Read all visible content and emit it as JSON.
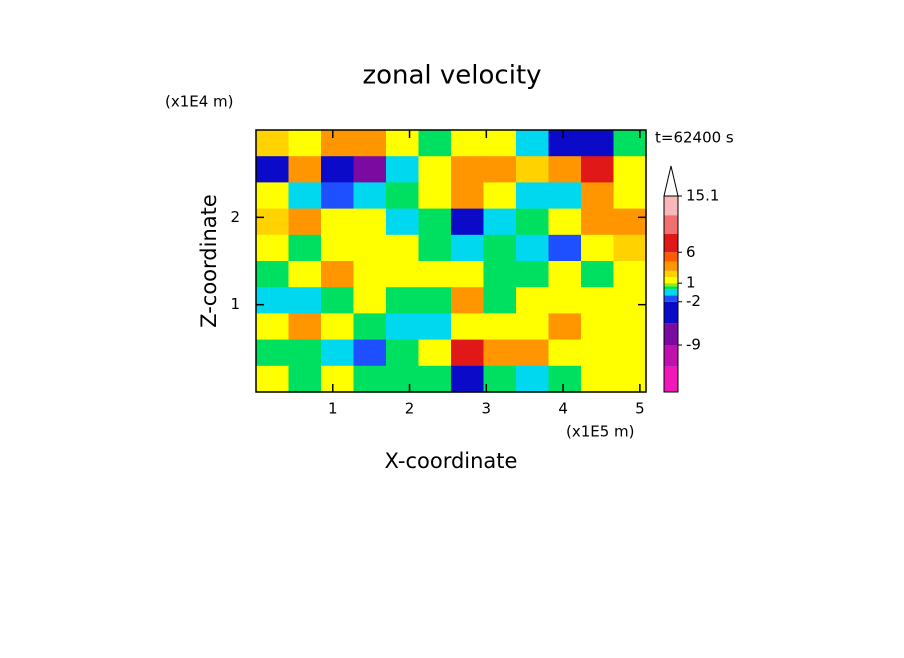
{
  "chart_data": {
    "type": "contour",
    "title": "zonal velocity",
    "x_label": "X-coordinate",
    "y_label": "Z-coordinate",
    "x_unit": "(x1E5 m)",
    "y_unit": "(x1E4 m)",
    "annotation": "t=62400 s",
    "xlim": [
      0,
      5.08
    ],
    "ylim": [
      0,
      3
    ],
    "xticks": [
      1,
      2,
      3,
      4,
      5
    ],
    "yticks": [
      1,
      2
    ],
    "z": [
      [
        2.5,
        1.5,
        3.5,
        4,
        1.5,
        0.3,
        1.5,
        1.5,
        -0.5,
        -4,
        -4,
        0.3
      ],
      [
        -4,
        4,
        -4,
        -7,
        -0.5,
        1.5,
        4,
        4,
        2.5,
        4,
        7,
        1.5
      ],
      [
        1.5,
        -0.5,
        -1.5,
        -0.5,
        0.3,
        1.5,
        4,
        1.5,
        -0.5,
        -0.5,
        4,
        1.5
      ],
      [
        2.5,
        4,
        1.5,
        1.5,
        -0.5,
        0.3,
        -4,
        -0.5,
        0.3,
        1.5,
        4,
        4
      ],
      [
        1.5,
        0.3,
        1.5,
        1.5,
        1.5,
        0.3,
        -0.5,
        0.3,
        -0.5,
        -1.5,
        1.5,
        2.5
      ],
      [
        0.3,
        1.5,
        4,
        1.5,
        1.5,
        1.5,
        1.5,
        0.3,
        0.3,
        1.5,
        0.3,
        1.5
      ],
      [
        -0.5,
        -0.5,
        0.3,
        1.5,
        0.3,
        0.3,
        4,
        0.3,
        1.5,
        1.5,
        1.5,
        1.5
      ],
      [
        1.5,
        4,
        1.5,
        0.3,
        -0.5,
        -0.5,
        1.5,
        1.5,
        1.5,
        4,
        1.5,
        1.5
      ],
      [
        0.3,
        0.3,
        -0.5,
        -1.5,
        0.3,
        1.5,
        7,
        4,
        4,
        1.5,
        1.5,
        1.5
      ],
      [
        1.5,
        0.3,
        1.5,
        0.3,
        0.3,
        0.3,
        -4,
        0.3,
        -0.5,
        0.3,
        1.5,
        1.5
      ]
    ],
    "levels": [
      -16.6,
      -12.5,
      -9,
      -5.5,
      -2,
      -1,
      0,
      0.5,
      1,
      2,
      3,
      4.5,
      6,
      9,
      12,
      15.1
    ],
    "level_colors": [
      "#f018b8",
      "#c010b0",
      "#7a0aa0",
      "#0a0ac8",
      "#1e50ff",
      "#00d8f0",
      "#00e060",
      "#90f000",
      "#ffff00",
      "#ffd200",
      "#ff9600",
      "#ff5a00",
      "#e01818",
      "#f07070",
      "#f8b8b8"
    ],
    "cticks": [
      15.1,
      6,
      1,
      -2,
      -9
    ]
  }
}
